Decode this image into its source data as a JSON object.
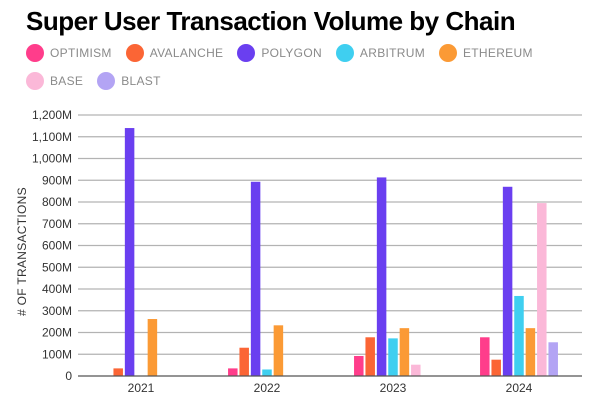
{
  "chart_data": {
    "type": "bar",
    "title": "Super User Transaction Volume by Chain",
    "xlabel": "",
    "ylabel": "# OF TRANSACTIONS",
    "categories": [
      "2021",
      "2022",
      "2023",
      "2024"
    ],
    "ylim": [
      0,
      1200
    ],
    "yticks": [
      0,
      100,
      200,
      300,
      400,
      500,
      600,
      700,
      800,
      900,
      1000,
      1100,
      1200
    ],
    "ytick_labels": [
      "0",
      "100M",
      "200M",
      "300M",
      "400M",
      "500M",
      "600M",
      "700M",
      "800M",
      "900M",
      "1,000M",
      "1,100M",
      "1,200M"
    ],
    "grid": true,
    "legend_position": "top-left",
    "series": [
      {
        "name": "OPTIMISM",
        "color": "#ff3d8b",
        "values": [
          0,
          35,
          92,
          178
        ]
      },
      {
        "name": "AVALANCHE",
        "color": "#fb6535",
        "values": [
          35,
          130,
          178,
          75
        ]
      },
      {
        "name": "POLYGON",
        "color": "#6a3ff0",
        "values": [
          1140,
          893,
          913,
          870
        ]
      },
      {
        "name": "ARBITRUM",
        "color": "#3fcff0",
        "values": [
          0,
          30,
          173,
          368
        ]
      },
      {
        "name": "ETHEREUM",
        "color": "#fb9a35",
        "values": [
          262,
          233,
          220,
          220
        ]
      },
      {
        "name": "BASE",
        "color": "#fbb8d8",
        "values": [
          0,
          0,
          52,
          795
        ]
      },
      {
        "name": "BLAST",
        "color": "#b3a4f4",
        "values": [
          0,
          0,
          0,
          155
        ]
      }
    ]
  }
}
